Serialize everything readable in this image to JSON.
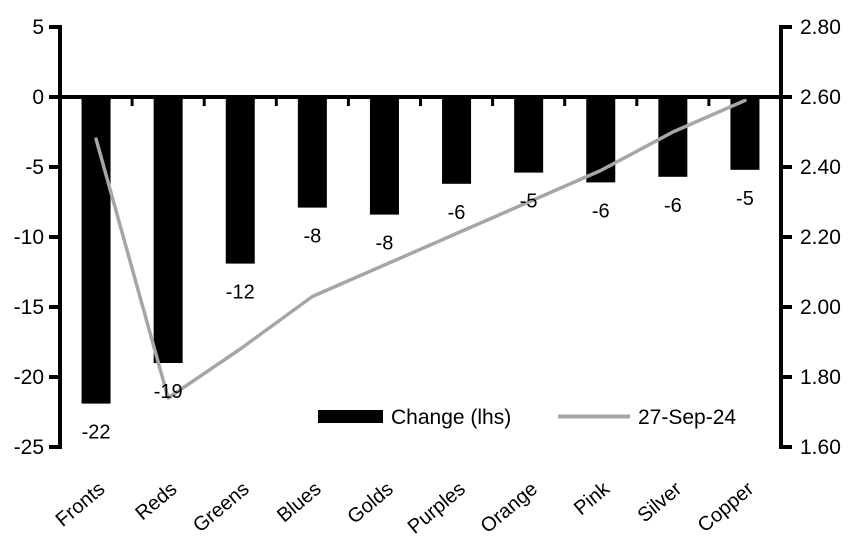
{
  "chart_data": {
    "type": "combo_bar_line",
    "title": "",
    "categories": [
      "Fronts",
      "Reds",
      "Greens",
      "Blues",
      "Golds",
      "Purples",
      "Orange",
      "Pink",
      "Silver",
      "Copper"
    ],
    "series": [
      {
        "name": "Change (lhs)",
        "type": "bar",
        "axis": "left",
        "color": "#000000",
        "values": [
          -21.9,
          -19,
          -11.9,
          -7.9,
          -8.4,
          -6.2,
          -5.4,
          -6.1,
          -5.7,
          -5.2
        ],
        "data_labels": [
          "-22",
          "-19",
          "-12",
          "-8",
          "-8",
          "-6",
          "-5",
          "-6",
          "-6",
          "-5"
        ]
      },
      {
        "name": "27-Sep-24",
        "type": "line",
        "axis": "right",
        "color": "#a6a6a6",
        "values": [
          2.48,
          1.74,
          1.88,
          2.03,
          2.12,
          2.21,
          2.3,
          2.39,
          2.5,
          2.59
        ]
      }
    ],
    "left_axis": {
      "min": -25,
      "max": 5,
      "tick_values": [
        5,
        0,
        -5,
        -10,
        -15,
        -20,
        -25
      ],
      "tick_labels": [
        "5",
        "0",
        "-5",
        "-10",
        "-15",
        "-20",
        "-25"
      ]
    },
    "right_axis": {
      "min": 1.6,
      "max": 2.8,
      "tick_values": [
        2.8,
        2.6,
        2.4,
        2.2,
        2.0,
        1.8,
        1.6
      ],
      "tick_labels": [
        "2.80",
        "2.60",
        "2.40",
        "2.20",
        "2.00",
        "1.80",
        "1.60"
      ]
    },
    "legend": {
      "position": "bottom-inside",
      "items": [
        "Change (lhs)",
        "27-Sep-24"
      ]
    },
    "grid": false,
    "background": "#ffffff",
    "axis_color": "#000000"
  }
}
